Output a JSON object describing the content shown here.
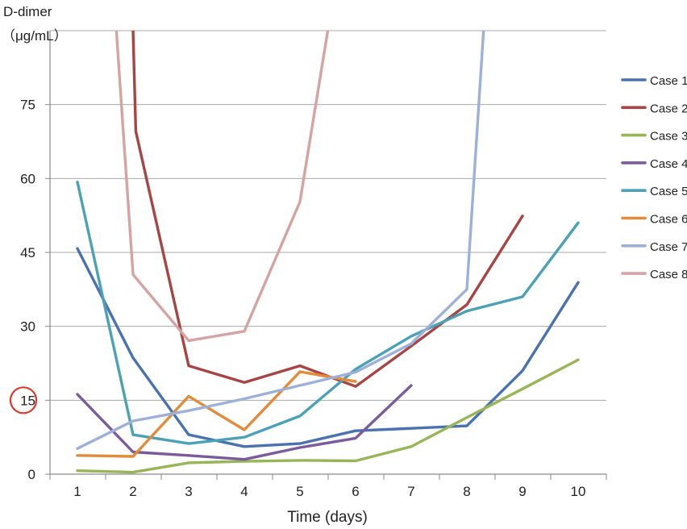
{
  "chart_data": {
    "type": "line",
    "ylabel_line1": "D-dimer",
    "ylabel_line2": "（μg/mL）",
    "xlabel": "Time (days)",
    "x": [
      1,
      2,
      3,
      4,
      5,
      6,
      7,
      8,
      9,
      10
    ],
    "ylim": [
      0,
      90
    ],
    "yticks": [
      0,
      15,
      30,
      45,
      60,
      75
    ],
    "highlighted_tick": 15,
    "grid": true,
    "legend_position": "right",
    "series": [
      {
        "name": "Case 1",
        "color": "#4a72b0",
        "points": [
          [
            1,
            45.8
          ],
          [
            2,
            23.6
          ],
          [
            3,
            8
          ],
          [
            4,
            5.6
          ],
          [
            5,
            6.2
          ],
          [
            6,
            8.8
          ],
          [
            7,
            9.3
          ],
          [
            8,
            9.8
          ],
          [
            9,
            21
          ],
          [
            10,
            38.9
          ]
        ]
      },
      {
        "name": "Case 2",
        "color": "#a64543",
        "points": [
          [
            2,
            90
          ],
          [
            2.05,
            69.6
          ],
          [
            3,
            22
          ],
          [
            4,
            18.6
          ],
          [
            5,
            22
          ],
          [
            6,
            17.8
          ],
          [
            7,
            26
          ],
          [
            8,
            34.4
          ],
          [
            9,
            52.4
          ]
        ]
      },
      {
        "name": "Case 3",
        "color": "#98b558",
        "points": [
          [
            1,
            0.7
          ],
          [
            2,
            0.4
          ],
          [
            3,
            2.3
          ],
          [
            4,
            2.6
          ],
          [
            5,
            2.8
          ],
          [
            6,
            2.7
          ],
          [
            7,
            5.6
          ],
          [
            8,
            11.5
          ],
          [
            9,
            17.3
          ],
          [
            10,
            23.2
          ]
        ]
      },
      {
        "name": "Case 4",
        "color": "#7a5c9c",
        "points": [
          [
            1,
            16.2
          ],
          [
            2,
            4.5
          ],
          [
            3,
            3.8
          ],
          [
            4,
            3
          ],
          [
            5,
            5.4
          ],
          [
            6,
            7.3
          ],
          [
            7,
            18
          ]
        ]
      },
      {
        "name": "Case 5",
        "color": "#4ba1b6",
        "points": [
          [
            1,
            59.3
          ],
          [
            2,
            8
          ],
          [
            3,
            6.2
          ],
          [
            4,
            7.5
          ],
          [
            5,
            11.8
          ],
          [
            6,
            21.3
          ],
          [
            7,
            28
          ],
          [
            8,
            33.1
          ],
          [
            9,
            36
          ],
          [
            10,
            51
          ]
        ]
      },
      {
        "name": "Case 6",
        "color": "#e28b3b",
        "points": [
          [
            1,
            3.8
          ],
          [
            2,
            3.6
          ],
          [
            3,
            15.8
          ],
          [
            4,
            9
          ],
          [
            5,
            20.8
          ],
          [
            6,
            18.8
          ]
        ]
      },
      {
        "name": "Case 7",
        "color": "#9db1d8",
        "points": [
          [
            1,
            5.2
          ],
          [
            2,
            10.8
          ],
          [
            3,
            12.9
          ],
          [
            4,
            15.3
          ],
          [
            5,
            18
          ],
          [
            6,
            20.7
          ],
          [
            7,
            26.5
          ],
          [
            8,
            37.5
          ],
          [
            8.3,
            90
          ]
        ]
      },
      {
        "name": "Case 8",
        "color": "#d6a3a3",
        "points": [
          [
            1.7,
            90
          ],
          [
            2,
            40.5
          ],
          [
            3,
            27.1
          ],
          [
            4,
            29
          ],
          [
            5,
            55.3
          ],
          [
            5.5,
            90
          ]
        ]
      }
    ]
  }
}
